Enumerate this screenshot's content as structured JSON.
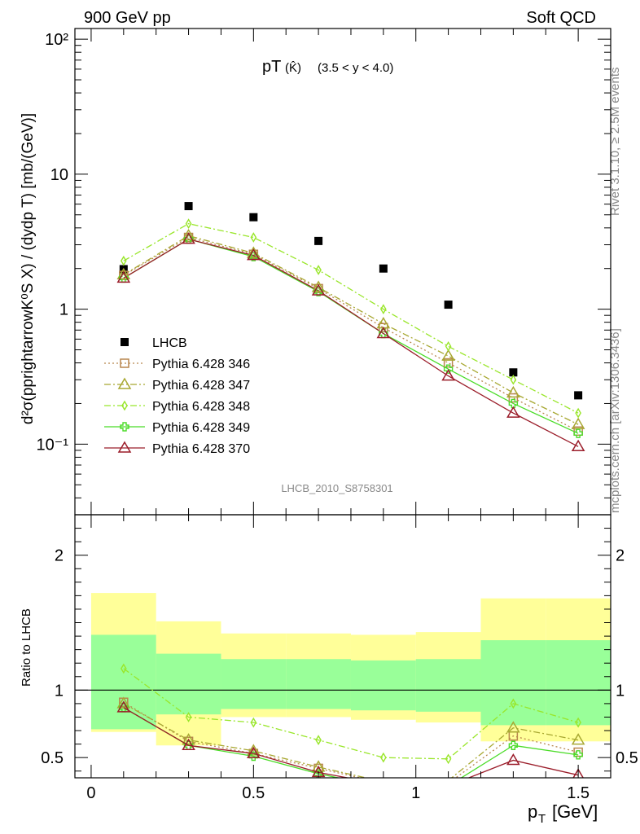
{
  "header": {
    "left": "900 GeV pp",
    "right": "Soft QCD"
  },
  "side": {
    "rivet": "Rivet 3.1.10, ≥ 2.5M events",
    "mcplots": "mcplots.cern.ch [arXiv:1306.3436]"
  },
  "plot": {
    "title_main": "pT",
    "title_particle": "(K̂)",
    "title_range": "(3.5 < y < 4.0)",
    "analysis_id": "LHCB_2010_S8758301",
    "ylabel_top": "d²σ(pprightarrowK⁰S X) / (dydp T) [mb/(GeV)]",
    "ylabel_bottom": "Ratio to LHCB",
    "xlabel": "p T [GeV]",
    "xlabel_main": "p",
    "xlabel_sub": "T",
    "xlabel_unit": "[GeV]"
  },
  "chart_data": [
    {
      "type": "scatter",
      "panel": "main",
      "log_y": true,
      "xlim": [
        -0.05,
        1.6
      ],
      "ylim": [
        0.03,
        120
      ],
      "x_ticks": [
        "0",
        "0.5",
        "1",
        "1.5"
      ],
      "y_ticks": [
        "10⁻¹",
        "1",
        "10",
        "10²"
      ],
      "x": [
        0.1,
        0.3,
        0.5,
        0.7,
        0.9,
        1.1,
        1.3,
        1.5
      ],
      "series": [
        {
          "name": "LHCB",
          "color": "#000000",
          "marker": "square",
          "values": [
            1.98,
            5.8,
            4.8,
            3.2,
            2.0,
            1.08,
            0.34,
            0.23
          ]
        },
        {
          "name": "Pythia 6.428 346",
          "color": "#b8864e",
          "marker": "open-square",
          "dash": "2,3",
          "values": [
            1.78,
            3.4,
            2.55,
            1.42,
            0.73,
            0.4,
            0.22,
            0.125
          ]
        },
        {
          "name": "Pythia 6.428 347",
          "color": "#a8a832",
          "marker": "open-triangle",
          "dash": "8,3,2,3",
          "values": [
            1.8,
            3.5,
            2.6,
            1.45,
            0.78,
            0.45,
            0.24,
            0.14
          ]
        },
        {
          "name": "Pythia 6.428 348",
          "color": "#99e62a",
          "marker": "open-diamond",
          "dash": "8,3,2,3",
          "values": [
            2.28,
            4.3,
            3.4,
            1.95,
            1.0,
            0.53,
            0.3,
            0.17
          ]
        },
        {
          "name": "Pythia 6.428 349",
          "color": "#4bdc28",
          "marker": "open-cross",
          "dash": "",
          "values": [
            1.7,
            3.3,
            2.45,
            1.35,
            0.66,
            0.36,
            0.2,
            0.12
          ]
        },
        {
          "name": "Pythia 6.428 370",
          "color": "#9b1d2a",
          "marker": "open-triangle",
          "dash": "",
          "values": [
            1.7,
            3.3,
            2.5,
            1.37,
            0.66,
            0.32,
            0.17,
            0.096
          ]
        }
      ]
    },
    {
      "type": "line",
      "panel": "ratio",
      "xlim": [
        -0.05,
        1.6
      ],
      "ylim": [
        0.35,
        2.3
      ],
      "x_ticks": [
        "0",
        "0.5",
        "1",
        "1.5"
      ],
      "y_ticks": [
        "0.5",
        "1",
        "2"
      ],
      "reference": 1,
      "bands": {
        "bins": [
          0,
          0.2,
          0.4,
          0.6,
          0.8,
          1.0,
          1.2,
          1.4,
          1.6
        ],
        "yellow_low": [
          0.69,
          0.59,
          0.8,
          0.8,
          0.78,
          0.76,
          0.62,
          0.62
        ],
        "yellow_high": [
          1.72,
          1.51,
          1.42,
          1.42,
          1.41,
          1.43,
          1.68,
          1.68
        ],
        "green_low": [
          0.71,
          0.82,
          0.86,
          0.86,
          0.85,
          0.84,
          0.74,
          0.74
        ],
        "green_high": [
          1.41,
          1.27,
          1.23,
          1.23,
          1.22,
          1.23,
          1.37,
          1.37
        ]
      },
      "x": [
        0.1,
        0.3,
        0.5,
        0.7,
        0.9,
        1.1,
        1.3,
        1.5
      ],
      "series": [
        {
          "name": "Pythia 6.428 346",
          "values": [
            0.91,
            0.62,
            0.53,
            0.42,
            0.31,
            0.31,
            0.66,
            0.54
          ]
        },
        {
          "name": "Pythia 6.428 347",
          "values": [
            0.9,
            0.63,
            0.55,
            0.43,
            0.32,
            0.33,
            0.72,
            0.63
          ]
        },
        {
          "name": "Pythia 6.428 348",
          "values": [
            1.16,
            0.8,
            0.76,
            0.63,
            0.5,
            0.49,
            0.9,
            0.76
          ]
        },
        {
          "name": "Pythia 6.428 349",
          "values": [
            0.87,
            0.59,
            0.51,
            0.38,
            0.28,
            0.29,
            0.59,
            0.52
          ]
        },
        {
          "name": "Pythia 6.428 370",
          "values": [
            0.87,
            0.59,
            0.53,
            0.39,
            0.3,
            0.29,
            0.48,
            0.37
          ]
        }
      ]
    }
  ]
}
